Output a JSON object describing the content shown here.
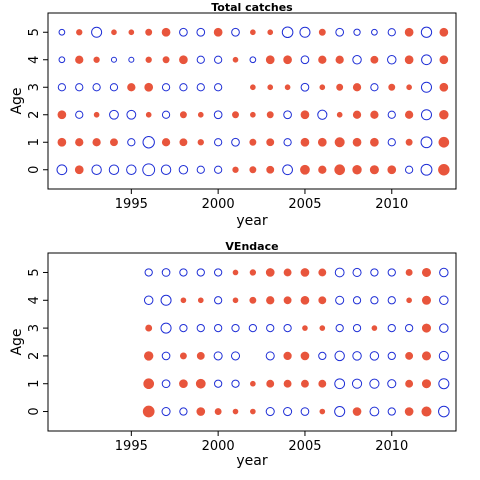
{
  "colors": {
    "positive": "#e8553c",
    "negative": "#1f2fd6"
  },
  "chart_data": [
    {
      "type": "scatter",
      "title": "Total catches",
      "xlabel": "year",
      "ylabel": "Age",
      "xlim": [
        1990.2,
        2013.7
      ],
      "ylim": [
        -0.7,
        5.7
      ],
      "xticks": [
        1995,
        2000,
        2005,
        2010
      ],
      "yticks": [
        0,
        1,
        2,
        3,
        4,
        5
      ],
      "grid": false,
      "legend": "none",
      "encoding": "bubble size = magnitude of residual; filled red = positive, open blue = negative",
      "ages": [
        5,
        4,
        3,
        2,
        1,
        0
      ],
      "years": [
        1991,
        1992,
        1993,
        1994,
        1995,
        1996,
        1997,
        1998,
        1999,
        2000,
        2001,
        2002,
        2003,
        2004,
        2005,
        2006,
        2007,
        2008,
        2009,
        2010,
        2011,
        2012,
        2013
      ],
      "values": [
        [
          -0.3,
          0.3,
          -1.4,
          0.2,
          0.2,
          0.4,
          0.8,
          -0.7,
          -0.7,
          0.8,
          -0.7,
          0.2,
          0.2,
          -1.6,
          -1.4,
          0.4,
          -0.7,
          -0.4,
          -0.3,
          -0.6,
          0.8,
          -1.5,
          0.8
        ],
        [
          -0.3,
          0.7,
          0.3,
          -0.2,
          -0.2,
          0.3,
          0.4,
          0.8,
          -0.6,
          -0.6,
          0.2,
          -0.3,
          0.8,
          0.8,
          -0.7,
          0.7,
          0.7,
          -0.9,
          0.6,
          -0.9,
          0.8,
          -1.3,
          0.8
        ],
        [
          -0.6,
          -0.6,
          -0.6,
          -0.6,
          0.7,
          0.8,
          -0.6,
          -0.6,
          -0.6,
          -0.6,
          0,
          0.2,
          0.2,
          0.2,
          -0.7,
          0.2,
          0.4,
          0.7,
          -0.6,
          0.4,
          0.2,
          -1.4,
          0.8
        ],
        [
          0.8,
          -0.6,
          0.2,
          -1.0,
          -1.0,
          0.2,
          -0.6,
          0.4,
          0.2,
          -0.7,
          0.4,
          0.2,
          0.4,
          -0.7,
          0.8,
          -1.1,
          0.2,
          0.7,
          0.7,
          -0.6,
          0.7,
          -1.4,
          1.0
        ],
        [
          0.8,
          0.7,
          0.7,
          0.6,
          -0.6,
          -1.9,
          0.7,
          0.6,
          0.3,
          -0.6,
          -0.7,
          0.4,
          0.6,
          -0.6,
          0.8,
          0.8,
          1.2,
          0.8,
          0.8,
          -0.6,
          0.4,
          -1.7,
          1.4
        ],
        [
          -1.3,
          0.8,
          -1.2,
          -1.2,
          -1.2,
          -2.1,
          -1.2,
          -0.9,
          -0.6,
          -0.6,
          0.3,
          0.4,
          0.6,
          -1.3,
          1.1,
          0.7,
          1.4,
          1.0,
          0.9,
          0.8,
          -0.6,
          -1.7,
          1.7
        ]
      ]
    },
    {
      "type": "scatter",
      "title": "VEndace",
      "xlabel": "year",
      "ylabel": "Age",
      "xlim": [
        1990.2,
        2013.7
      ],
      "ylim": [
        -0.7,
        5.7
      ],
      "xticks": [
        1995,
        2000,
        2005,
        2010
      ],
      "yticks": [
        0,
        1,
        2,
        3,
        4,
        5
      ],
      "grid": false,
      "legend": "none",
      "encoding": "bubble size = magnitude of residual; filled red = positive, open blue = negative",
      "ages": [
        5,
        4,
        3,
        2,
        1,
        0
      ],
      "years": [
        1996,
        1997,
        1998,
        1999,
        2000,
        2001,
        2002,
        2003,
        2004,
        2005,
        2006,
        2007,
        2008,
        2009,
        2010,
        2011,
        2012,
        2013
      ],
      "values": [
        [
          -0.6,
          -0.7,
          -0.6,
          -0.6,
          -0.6,
          0.2,
          0.3,
          0.8,
          0.6,
          0.8,
          0.6,
          -1.0,
          -0.8,
          -0.6,
          -0.6,
          0.4,
          0.9,
          -0.9
        ],
        [
          -0.9,
          -1.4,
          0.2,
          0.2,
          -0.6,
          0.2,
          0.4,
          0.7,
          0.6,
          0.8,
          0.6,
          -0.8,
          -0.6,
          -0.6,
          -0.6,
          0.2,
          0.9,
          -0.9
        ],
        [
          0.4,
          -1.4,
          -0.6,
          -0.6,
          -0.6,
          -0.6,
          -0.6,
          -0.6,
          -0.6,
          0.2,
          0.2,
          -0.6,
          -0.6,
          0.2,
          -0.6,
          -0.6,
          0.9,
          -0.9
        ],
        [
          1.0,
          -0.7,
          0.4,
          0.6,
          -0.8,
          -0.8,
          0,
          -0.8,
          0.7,
          0.8,
          -0.6,
          -1.2,
          -0.9,
          -0.9,
          -0.6,
          0.6,
          0.9,
          -1.1
        ],
        [
          1.4,
          -0.7,
          0.8,
          1.1,
          -0.6,
          -0.6,
          0.2,
          0.6,
          0.6,
          0.6,
          0.6,
          -1.3,
          -1.1,
          -1.1,
          -0.8,
          0.6,
          0.9,
          -1.4
        ],
        [
          1.8,
          -0.8,
          -0.6,
          0.8,
          0.4,
          0.2,
          0.2,
          -0.8,
          -0.8,
          -0.7,
          0.2,
          -1.4,
          0.8,
          -1.0,
          -0.6,
          0.8,
          1.2,
          -1.6
        ]
      ]
    }
  ]
}
